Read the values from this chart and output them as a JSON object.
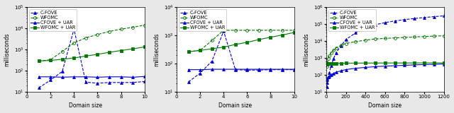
{
  "subplot1": {
    "xlabel": "Domain size",
    "ylabel": "milliseconds",
    "xlim": [
      0,
      10
    ],
    "ylim": [
      10,
      100000.0
    ],
    "xticks": [
      0,
      2,
      4,
      6,
      8,
      10
    ],
    "series": {
      "cfove": {
        "x": [
          1,
          2,
          3,
          4,
          5,
          6,
          7,
          8,
          9,
          10
        ],
        "y": [
          15,
          35,
          90,
          9000,
          28,
          25,
          27,
          27,
          27,
          30
        ],
        "color": "#0000cc",
        "marker": "^",
        "linestyle": "--",
        "label": "C-FOVE",
        "filled": true
      },
      "wfomc": {
        "x": [
          1,
          2,
          3,
          4,
          5,
          6,
          7,
          8,
          9,
          10
        ],
        "y": [
          280,
          320,
          800,
          2000,
          3500,
          5000,
          7000,
          9000,
          11000,
          14000
        ],
        "color": "#007700",
        "marker": "o",
        "linestyle": "--",
        "label": "WFOMC",
        "filled": false
      },
      "cfove_uar": {
        "x": [
          1,
          2,
          3,
          4,
          5,
          6,
          7,
          8,
          9,
          10
        ],
        "y": [
          50,
          50,
          48,
          50,
          50,
          48,
          50,
          50,
          48,
          52
        ],
        "color": "#0000cc",
        "marker": "^",
        "linestyle": "-",
        "label": "CFOVE + UAR",
        "filled": true
      },
      "wfomc_uar": {
        "x": [
          1,
          2,
          3,
          4,
          5,
          6,
          7,
          8,
          9,
          10
        ],
        "y": [
          280,
          300,
          340,
          390,
          480,
          580,
          720,
          880,
          1050,
          1300
        ],
        "color": "#007700",
        "marker": "s",
        "linestyle": "-",
        "label": "WFOMC + UAR",
        "filled": true
      }
    }
  },
  "subplot2": {
    "xlabel": "Domain size",
    "ylabel": "milliseconds",
    "xlim": [
      0,
      10
    ],
    "ylim": [
      10,
      10000.0
    ],
    "xticks": [
      0,
      2,
      4,
      6,
      8,
      10
    ],
    "series": {
      "cfove": {
        "x": [
          1,
          2,
          3,
          4,
          5,
          6,
          7,
          8,
          9,
          10
        ],
        "y": [
          22,
          45,
          120,
          1400,
          60,
          58,
          58,
          60,
          60,
          60
        ],
        "color": "#0000cc",
        "marker": "^",
        "linestyle": "--",
        "label": "C-FOVE",
        "filled": true
      },
      "wfomc": {
        "x": [
          1,
          2,
          3,
          4,
          5,
          6,
          7,
          8,
          9,
          10
        ],
        "y": [
          260,
          290,
          650,
          1500,
          1500,
          1500,
          1500,
          1500,
          1500,
          1500
        ],
        "color": "#007700",
        "marker": "o",
        "linestyle": "--",
        "label": "WFOMC",
        "filled": false
      },
      "cfove_uar": {
        "x": [
          1,
          2,
          3,
          4,
          5,
          6,
          7,
          8,
          9,
          10
        ],
        "y": [
          60,
          60,
          62,
          62,
          62,
          62,
          62,
          62,
          62,
          62
        ],
        "color": "#0000cc",
        "marker": "^",
        "linestyle": "-",
        "label": "CFOVE + UAR",
        "filled": true
      },
      "wfomc_uar": {
        "x": [
          1,
          2,
          3,
          4,
          5,
          6,
          7,
          8,
          9,
          10
        ],
        "y": [
          260,
          290,
          330,
          380,
          470,
          560,
          700,
          850,
          1020,
          1250
        ],
        "color": "#007700",
        "marker": "s",
        "linestyle": "-",
        "label": "WFOMC + UAR",
        "filled": true
      }
    }
  },
  "subplot3": {
    "xlabel": "Domain size",
    "ylabel": "milliseconds",
    "xlim": [
      0,
      1200
    ],
    "ylim": [
      10,
      1000000.0
    ],
    "xticks": [
      0,
      200,
      400,
      600,
      800,
      1000,
      1200
    ],
    "series": {
      "cfove": {
        "x": [
          5,
          10,
          20,
          30,
          50,
          75,
          100,
          150,
          200,
          300,
          400,
          500,
          600,
          700,
          800,
          900,
          1000,
          1100,
          1200
        ],
        "y": [
          20,
          35,
          70,
          130,
          350,
          900,
          2000,
          5000,
          12000,
          30000,
          60000,
          90000,
          120000,
          150000,
          180000,
          210000,
          240000,
          270000,
          300000
        ],
        "color": "#0000cc",
        "marker": "^",
        "linestyle": "--",
        "label": "C-FOVE",
        "filled": true
      },
      "wfomc": {
        "x": [
          5,
          10,
          20,
          30,
          50,
          75,
          100,
          150,
          200,
          300,
          400,
          500,
          600,
          700,
          800,
          900,
          1000,
          1100,
          1200
        ],
        "y": [
          300,
          500,
          900,
          1300,
          2000,
          2800,
          3800,
          5500,
          7000,
          9000,
          11000,
          13000,
          14000,
          15000,
          16000,
          17000,
          18000,
          19000,
          20000
        ],
        "color": "#007700",
        "marker": "o",
        "linestyle": "--",
        "label": "WFOMC",
        "filled": false
      },
      "cfove_uar": {
        "x": [
          5,
          10,
          20,
          30,
          50,
          75,
          100,
          150,
          200,
          300,
          400,
          500,
          600,
          700,
          800,
          900,
          1000,
          1100,
          1200
        ],
        "y": [
          50,
          60,
          70,
          80,
          100,
          120,
          140,
          170,
          200,
          240,
          270,
          300,
          320,
          340,
          360,
          380,
          400,
          410,
          430
        ],
        "color": "#0000cc",
        "marker": "^",
        "linestyle": "-",
        "label": "CFOVE + UAR",
        "filled": true
      },
      "wfomc_uar": {
        "x": [
          5,
          10,
          20,
          30,
          50,
          75,
          100,
          150,
          200,
          300,
          400,
          500,
          600,
          700,
          800,
          900,
          1000,
          1100,
          1200
        ],
        "y": [
          430,
          440,
          450,
          455,
          460,
          465,
          470,
          475,
          480,
          485,
          488,
          490,
          492,
          493,
          494,
          495,
          496,
          497,
          498
        ],
        "color": "#007700",
        "marker": "s",
        "linestyle": "-",
        "label": "WFOMC + UAR",
        "filled": true
      }
    }
  },
  "legend_fontsize": 4.8,
  "axis_fontsize": 5.5,
  "tick_fontsize": 5.0,
  "bg_color": "#e8e8e8"
}
